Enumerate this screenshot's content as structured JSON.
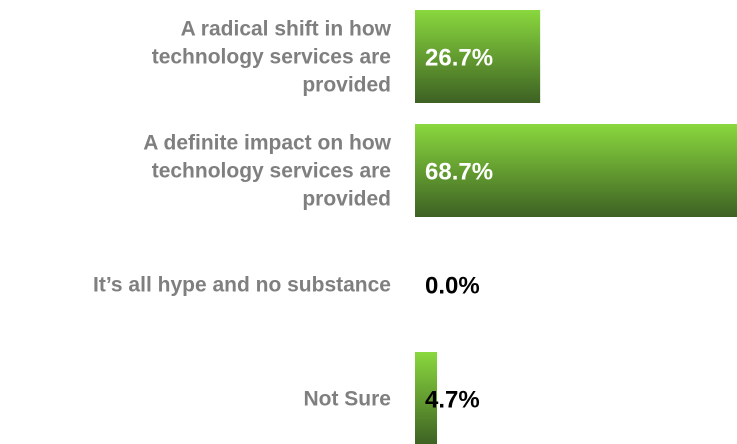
{
  "chart_data": {
    "type": "bar",
    "orientation": "horizontal",
    "categories": [
      [
        "A radical shift in how",
        "technology services are",
        "provided"
      ],
      [
        "A definite impact on how",
        "technology services are",
        "provided"
      ],
      [
        "It’s all hype and no substance"
      ],
      [
        "Not Sure"
      ]
    ],
    "values": [
      26.7,
      68.7,
      0.0,
      4.7
    ],
    "value_labels": [
      "26.7%",
      "68.7%",
      "0.0%",
      "4.7%"
    ],
    "xlim": [
      0,
      68.7
    ],
    "grid": false,
    "legend": "none",
    "colors": {
      "bar_top": "#8ad83e",
      "bar_bottom": "#3d6123",
      "label_text": "#7f7f7f",
      "value_text_inside": "#ffffff",
      "value_text_outside": "#000000"
    }
  }
}
